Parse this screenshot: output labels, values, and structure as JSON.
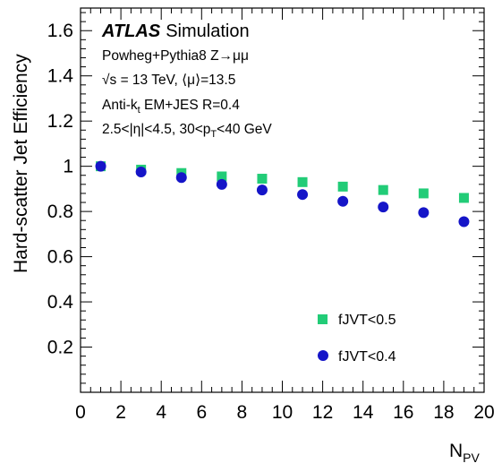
{
  "chart_data": {
    "type": "scatter",
    "xlabel": "N",
    "xlabel_sub": "PV",
    "ylabel": "Hard-scatter Jet Efficiency",
    "xlim": [
      0,
      20
    ],
    "ylim": [
      0,
      1.7
    ],
    "x_ticks": [
      "0",
      "2",
      "4",
      "6",
      "8",
      "10",
      "12",
      "14",
      "16",
      "18",
      "20"
    ],
    "y_ticks": [
      "0.2",
      "0.4",
      "0.6",
      "0.8",
      "1",
      "1.2",
      "1.4",
      "1.6"
    ],
    "grid": false,
    "legend_position": "bottom-right",
    "series": [
      {
        "name": "fJVT<0.5",
        "marker": "square",
        "color": "#22cc77",
        "x": [
          1,
          3,
          5,
          7,
          9,
          11,
          13,
          15,
          17,
          19
        ],
        "y": [
          1.0,
          0.985,
          0.97,
          0.955,
          0.945,
          0.93,
          0.91,
          0.895,
          0.88,
          0.86
        ]
      },
      {
        "name": "fJVT<0.4",
        "marker": "circle",
        "color": "#1515c8",
        "x": [
          1,
          3,
          5,
          7,
          9,
          11,
          13,
          15,
          17,
          19
        ],
        "y": [
          1.0,
          0.975,
          0.95,
          0.92,
          0.895,
          0.875,
          0.845,
          0.82,
          0.795,
          0.755
        ]
      }
    ],
    "annotations": {
      "experiment": "ATLAS",
      "label": "Simulation",
      "lines": [
        "Powheg+Pythia8 Z→μμ",
        "√s = 13 TeV, ⟨μ⟩=13.5",
        "Anti-k",
        "2.5<|η|<4.5, 30<p"
      ],
      "line3_sub": "t",
      "line3_rest": " EM+JES R=0.4",
      "line4_sub": "T",
      "line4_rest": "<40 GeV"
    }
  }
}
